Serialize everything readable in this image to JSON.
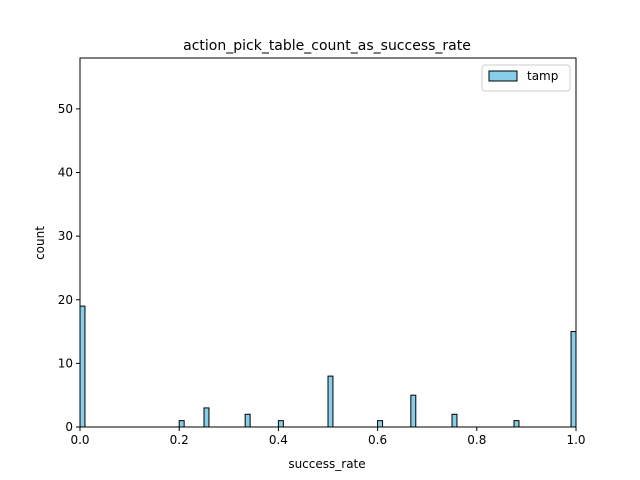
{
  "chart_data": {
    "type": "bar",
    "title": "action_pick_table_count_as_success_rate",
    "xlabel": "success_rate",
    "ylabel": "count",
    "xlim": [
      0,
      1
    ],
    "ylim": [
      0,
      58
    ],
    "xticks": [
      0.0,
      0.2,
      0.4,
      0.6,
      0.8,
      1.0
    ],
    "xtick_labels": [
      "0.0",
      "0.2",
      "0.4",
      "0.6",
      "0.8",
      "1.0"
    ],
    "yticks": [
      0,
      10,
      20,
      30,
      40,
      50
    ],
    "ytick_labels": [
      "0",
      "10",
      "20",
      "30",
      "40",
      "50"
    ],
    "bin_width": 0.01,
    "grid": false,
    "legend_position": "top-right",
    "series": [
      {
        "name": "tamp",
        "color": "#87ceeb",
        "edgecolor": "#000000",
        "bins": [
          {
            "x": 0.0,
            "count": 19
          },
          {
            "x": 0.2,
            "count": 1
          },
          {
            "x": 0.25,
            "count": 3
          },
          {
            "x": 0.333,
            "count": 2
          },
          {
            "x": 0.4,
            "count": 1
          },
          {
            "x": 0.5,
            "count": 8
          },
          {
            "x": 0.6,
            "count": 1
          },
          {
            "x": 0.667,
            "count": 5
          },
          {
            "x": 0.75,
            "count": 2
          },
          {
            "x": 0.875,
            "count": 1
          },
          {
            "x": 0.99,
            "count": 15
          }
        ]
      }
    ]
  }
}
